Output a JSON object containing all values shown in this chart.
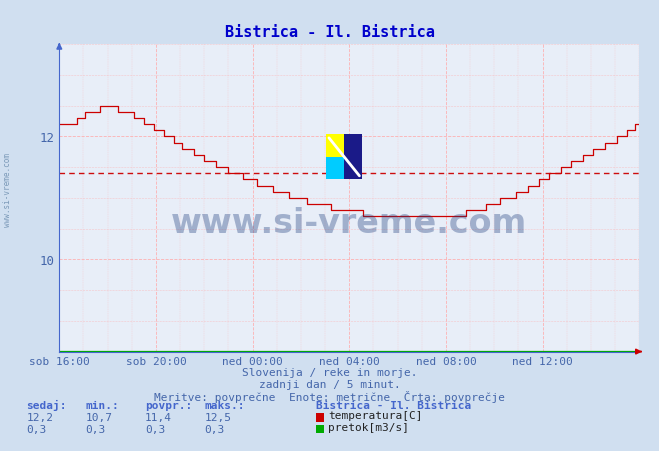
{
  "title": "Bistrica - Il. Bistrica",
  "title_color": "#0000cc",
  "bg_color": "#d0dff0",
  "plot_bg_color": "#e8eef8",
  "grid_color_h": "#ffaaaa",
  "grid_color_v": "#ffaaaa",
  "x_labels": [
    "sob 16:00",
    "sob 20:00",
    "ned 00:00",
    "ned 04:00",
    "ned 08:00",
    "ned 12:00"
  ],
  "ylim_min": 8.5,
  "ylim_max": 13.5,
  "yticks": [
    10,
    12
  ],
  "temp_avg": 11.4,
  "temp_color": "#cc0000",
  "pretok_color": "#00aa00",
  "watermark_text": "www.si-vreme.com",
  "watermark_color": "#1a3a7a",
  "watermark_alpha": 0.35,
  "footer_line1": "Slovenija / reke in morje.",
  "footer_line2": "zadnji dan / 5 minut.",
  "footer_line3": "Meritve: povprečne  Enote: metrične  Črta: povprečje",
  "footer_color": "#4466aa",
  "legend_title": "Bistrica - Il. Bistrica",
  "stats_headers": [
    "sedaj:",
    "min.:",
    "povpr.:",
    "maks.:"
  ],
  "temp_stats": [
    "12,2",
    "10,7",
    "11,4",
    "12,5"
  ],
  "pretok_stats": [
    "0,3",
    "0,3",
    "0,3",
    "0,3"
  ],
  "sidebar_text": "www.si-vreme.com",
  "sidebar_color": "#6688aa",
  "axis_color": "#4466cc",
  "tick_color": "#4466aa"
}
